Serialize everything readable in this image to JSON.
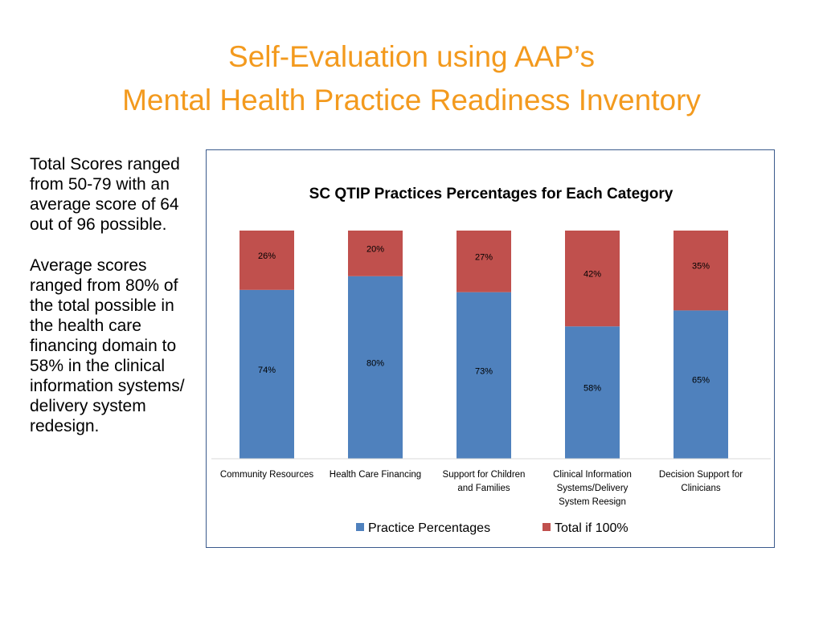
{
  "slide": {
    "title_line1": "Self-Evaluation using AAP’s",
    "title_line2": "Mental Health Practice Readiness Inventory",
    "paragraphs": [
      "Total Scores ranged from 50-79 with an average score of 64 out of 96 possible.",
      "Average scores ranged from 80% of the total possible in the health care financing domain to 58% in the clinical information systems/ delivery system redesign."
    ]
  },
  "chart_data": {
    "type": "bar",
    "stacked": true,
    "title": "SC QTIP Practices Percentages for Each Category",
    "categories": [
      [
        "Community Resources"
      ],
      [
        "Health Care Financing"
      ],
      [
        "Support for Children",
        "and Families"
      ],
      [
        "Clinical Information",
        "Systems/Delivery",
        "System Reesign"
      ],
      [
        "Decision Support for",
        "Clinicians"
      ]
    ],
    "series": [
      {
        "name": "Practice Percentages",
        "values": [
          74,
          80,
          73,
          58,
          65
        ],
        "labels": [
          "74%",
          "80%",
          "73%",
          "58%",
          "65%"
        ],
        "color": "#4F81BD"
      },
      {
        "name": "Total if 100%",
        "values": [
          26,
          20,
          27,
          42,
          35
        ],
        "labels": [
          "26%",
          "20%",
          "27%",
          "42%",
          "35%"
        ],
        "color": "#C0504D"
      }
    ],
    "ylim": [
      0,
      100
    ],
    "grid": false,
    "legend_position": "bottom"
  }
}
